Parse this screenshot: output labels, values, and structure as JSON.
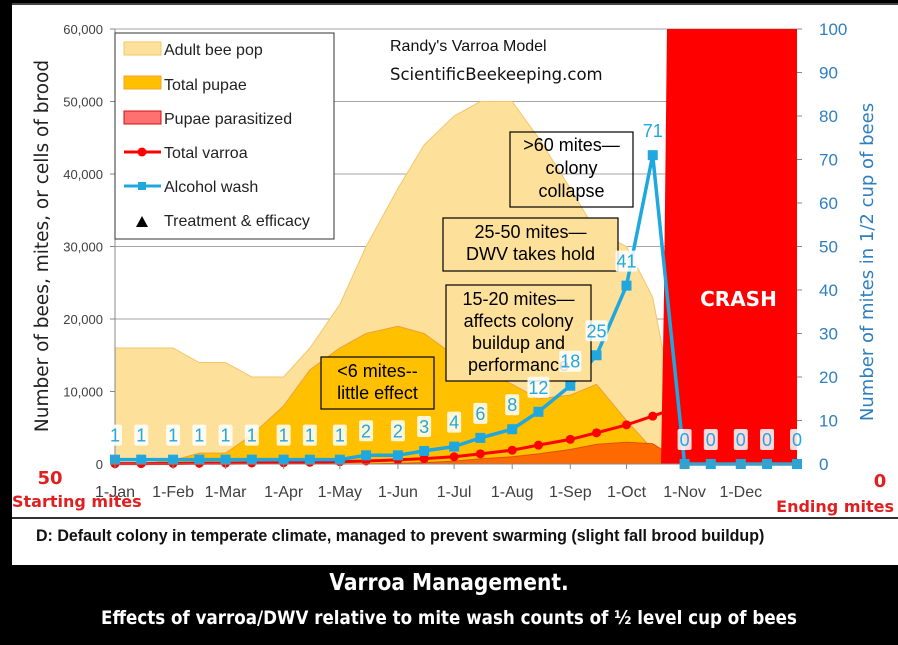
{
  "chart_data": {
    "type": "area",
    "title": "Randy's Varroa Model",
    "subtitle": "ScientificBeekeeping.com",
    "ylabel": "Number of bees, mites, or cells of brood",
    "y2label": "Number of mites in 1/2 cup of bees",
    "ylim": [
      0,
      60000
    ],
    "y2lim": [
      0,
      100
    ],
    "yticks": [
      "0",
      "10,000",
      "20,000",
      "30,000",
      "40,000",
      "50,000",
      "60,000"
    ],
    "y2ticks": [
      "0",
      "10",
      "20",
      "30",
      "40",
      "50",
      "60",
      "70",
      "80",
      "90",
      "100"
    ],
    "xticks": [
      "1-Jan",
      "1-Feb",
      "1-Mar",
      "1-Apr",
      "1-May",
      "1-Jun",
      "1-Jul",
      "1-Aug",
      "1-Sep",
      "1-Oct",
      "1-Nov",
      "1-Dec"
    ],
    "x_day": [
      0,
      14,
      31,
      45,
      59,
      73,
      90,
      104,
      120,
      134,
      151,
      165,
      181,
      195,
      212,
      226,
      243,
      257,
      273,
      287,
      304,
      318,
      334,
      348,
      364
    ],
    "grid": true,
    "legend_position": "top-left",
    "series": [
      {
        "name": "Adult bee pop",
        "axis": "left",
        "type": "area",
        "color": "#fde09a",
        "values": [
          16000,
          16000,
          16000,
          14000,
          14000,
          12000,
          12000,
          16000,
          22000,
          30000,
          38000,
          44000,
          48000,
          50000,
          50000,
          45000,
          38000,
          32000,
          30000,
          23000,
          0,
          0,
          0,
          0,
          0
        ]
      },
      {
        "name": "Total pupae",
        "axis": "left",
        "type": "area",
        "color": "#ffc000",
        "values": [
          0,
          0,
          500,
          1500,
          1500,
          4000,
          8000,
          13000,
          16000,
          18000,
          19000,
          18000,
          15000,
          13000,
          11000,
          9000,
          9500,
          11000,
          6000,
          2000,
          0,
          0,
          0,
          0,
          0
        ]
      },
      {
        "name": "Pupae parasitized",
        "axis": "left",
        "type": "area",
        "color": "#ff6a00",
        "values": [
          0,
          0,
          0,
          0,
          0,
          0,
          0,
          0,
          0,
          0,
          100,
          200,
          400,
          700,
          1000,
          1400,
          2000,
          2700,
          3000,
          2800,
          0,
          0,
          0,
          0,
          0
        ]
      },
      {
        "name": "Total varroa",
        "axis": "left",
        "type": "line",
        "color": "#ff0000",
        "values": [
          50,
          60,
          70,
          90,
          110,
          140,
          180,
          240,
          320,
          420,
          560,
          750,
          1000,
          1400,
          1900,
          2600,
          3400,
          4300,
          5400,
          6600,
          8100,
          9300,
          null,
          null,
          null
        ]
      },
      {
        "name": "Alcohol wash",
        "axis": "right",
        "type": "line",
        "color": "#1fa8e0",
        "values": [
          1,
          1,
          1,
          1,
          1,
          1,
          1,
          1,
          1,
          2,
          2,
          3,
          4,
          6,
          8,
          12,
          18,
          25,
          41,
          71,
          0,
          0,
          0,
          0,
          0
        ],
        "labels": [
          "1",
          "1",
          "1",
          "1",
          "1",
          "1",
          "1",
          "1",
          "1",
          "2",
          "2",
          "3",
          "4",
          "6",
          "8",
          "12",
          "18",
          "25",
          "41",
          "71",
          "0",
          "0",
          "0",
          "0",
          "0"
        ]
      },
      {
        "name": "Treatment & efficacy",
        "axis": "left",
        "type": "marker",
        "values": []
      }
    ],
    "crash_region": {
      "from_day": 293,
      "to_day": 364,
      "label": "CRASH",
      "color": "#ff0000"
    },
    "annotations": [
      {
        "lines": [
          "<6 mites--",
          "little effect"
        ],
        "fill": "#ffc000"
      },
      {
        "lines": [
          "15-20 mites—",
          "affects colony",
          "buildup and",
          "performance"
        ],
        "fill": "#fde09a"
      },
      {
        "lines": [
          "25-50 mites—",
          "DWV takes hold"
        ],
        "fill": "#fde09a"
      },
      {
        "lines": [
          ">60 mites—",
          "colony",
          "collapse"
        ],
        "fill": "none"
      }
    ],
    "start_label": {
      "value": "50",
      "text": "Starting mites"
    },
    "end_label": {
      "value": "0",
      "text": "Ending mites"
    }
  },
  "caption": "D: Default colony in temperate climate, managed to prevent swarming (slight fall brood buildup)",
  "footer": {
    "title": "Varroa Management.",
    "subtitle": "Effects of varroa/DWV relative to mite wash counts of ½ level cup of bees"
  }
}
